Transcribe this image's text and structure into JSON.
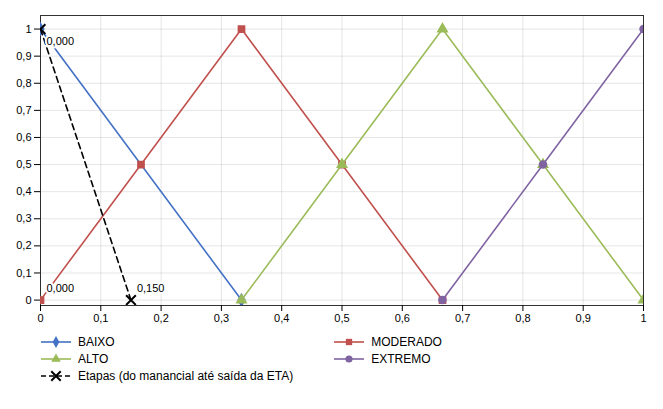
{
  "chart_data": {
    "type": "line",
    "series": [
      {
        "name": "BAIXO",
        "color": "#4472C4",
        "marker": "diamond",
        "line_style": "solid",
        "x": [
          0,
          0.33333
        ],
        "values": [
          1,
          0
        ]
      },
      {
        "name": "MODERADO",
        "color": "#C0504D",
        "marker": "square",
        "line_style": "solid",
        "x": [
          0,
          0.16667,
          0.33333,
          0.5,
          0.66667
        ],
        "values": [
          0,
          0.5,
          1,
          0.5,
          0
        ]
      },
      {
        "name": "ALTO",
        "color": "#9BBB59",
        "marker": "triangle",
        "line_style": "solid",
        "x": [
          0.33333,
          0.5,
          0.66667,
          0.83333,
          1.0
        ],
        "values": [
          0,
          0.5,
          1,
          0.5,
          0
        ]
      },
      {
        "name": "EXTREMO",
        "color": "#8064A2",
        "marker": "circle",
        "line_style": "solid",
        "x": [
          0.66667,
          0.83333,
          1.0
        ],
        "values": [
          0,
          0.5,
          1
        ]
      },
      {
        "name": "Etapas (do manancial até saída da ETA)",
        "color": "#000000",
        "marker": "x",
        "line_style": "dashed",
        "x": [
          0,
          0.15
        ],
        "values": [
          1,
          0
        ]
      }
    ],
    "annotations": [
      {
        "text": "0,000",
        "x": 0,
        "y": 1
      },
      {
        "text": "0,000",
        "x": 0,
        "y": 0
      },
      {
        "text": "0,150",
        "x": 0.15,
        "y": 0
      }
    ],
    "xlim": [
      0,
      1.0
    ],
    "ylim": [
      -0.02,
      1.05
    ],
    "xticks": [
      0,
      {
        "value": 0.1,
        "label": "0,1"
      },
      {
        "value": 0.2,
        "label": "0,2"
      },
      {
        "value": 0.3,
        "label": "0,3"
      },
      {
        "value": 0.4,
        "label": "0,4"
      },
      {
        "value": 0.5,
        "label": "0,5"
      },
      {
        "value": 0.6,
        "label": "0,6"
      },
      {
        "value": 0.7,
        "label": "0,7"
      },
      {
        "value": 0.8,
        "label": "0,8"
      },
      {
        "value": 0.9,
        "label": "0,9"
      },
      1
    ],
    "yticks": [
      0,
      {
        "value": 0.1,
        "label": "0,1"
      },
      {
        "value": 0.2,
        "label": "0,2"
      },
      {
        "value": 0.3,
        "label": "0,3"
      },
      {
        "value": 0.4,
        "label": "0,4"
      },
      {
        "value": 0.5,
        "label": "0,5"
      },
      {
        "value": 0.6,
        "label": "0,6"
      },
      {
        "value": 0.7,
        "label": "0,7"
      },
      {
        "value": 0.8,
        "label": "0,8"
      },
      {
        "value": 0.9,
        "label": "0,9"
      },
      1
    ],
    "grid": true,
    "legend": "bottom"
  }
}
